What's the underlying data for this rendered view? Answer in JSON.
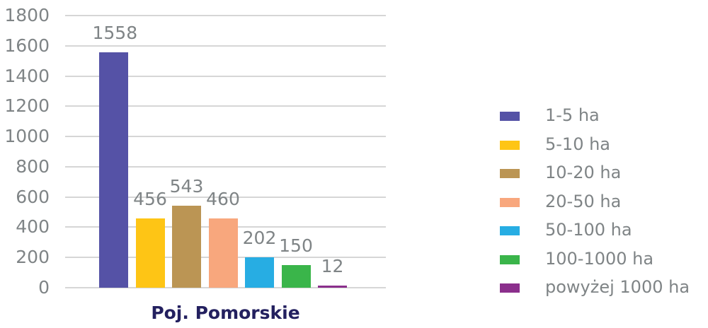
{
  "chart_data": {
    "type": "bar",
    "title": "",
    "xlabel": "Poj. Pomorskie",
    "ylabel": "",
    "ylim": [
      0,
      1800
    ],
    "yticks": [
      0,
      200,
      400,
      600,
      800,
      1000,
      1200,
      1400,
      1600,
      1800
    ],
    "grid": true,
    "legend_position": "right",
    "categories": [
      "Poj. Pomorskie"
    ],
    "series": [
      {
        "name": "1-5 ha",
        "values": [
          1558
        ],
        "color": "#5552a6"
      },
      {
        "name": "5-10 ha",
        "values": [
          456
        ],
        "color": "#fec515"
      },
      {
        "name": "10-20 ha",
        "values": [
          543
        ],
        "color": "#bb9554"
      },
      {
        "name": "20-50 ha",
        "values": [
          460
        ],
        "color": "#f8a77d"
      },
      {
        "name": "50-100 ha",
        "values": [
          202
        ],
        "color": "#27ade3"
      },
      {
        "name": "100-1000 ha",
        "values": [
          150
        ],
        "color": "#3ab54a"
      },
      {
        "name": "powyżej 1000 ha",
        "values": [
          12
        ],
        "color": "#8b2f8c"
      }
    ]
  },
  "labels": {
    "yticks": [
      "1800",
      "1600",
      "1400",
      "1200",
      "1000",
      "800",
      "600",
      "400",
      "200",
      "0"
    ],
    "data": [
      "1558",
      "456",
      "543",
      "460",
      "202",
      "150",
      "12"
    ],
    "legend": [
      "1-5 ha",
      "5-10 ha",
      "10-20 ha",
      "20-50 ha",
      "50-100 ha",
      "100-1000 ha",
      "powyżej 1000 ha"
    ],
    "xlabel": "Poj. Pomorskie"
  }
}
